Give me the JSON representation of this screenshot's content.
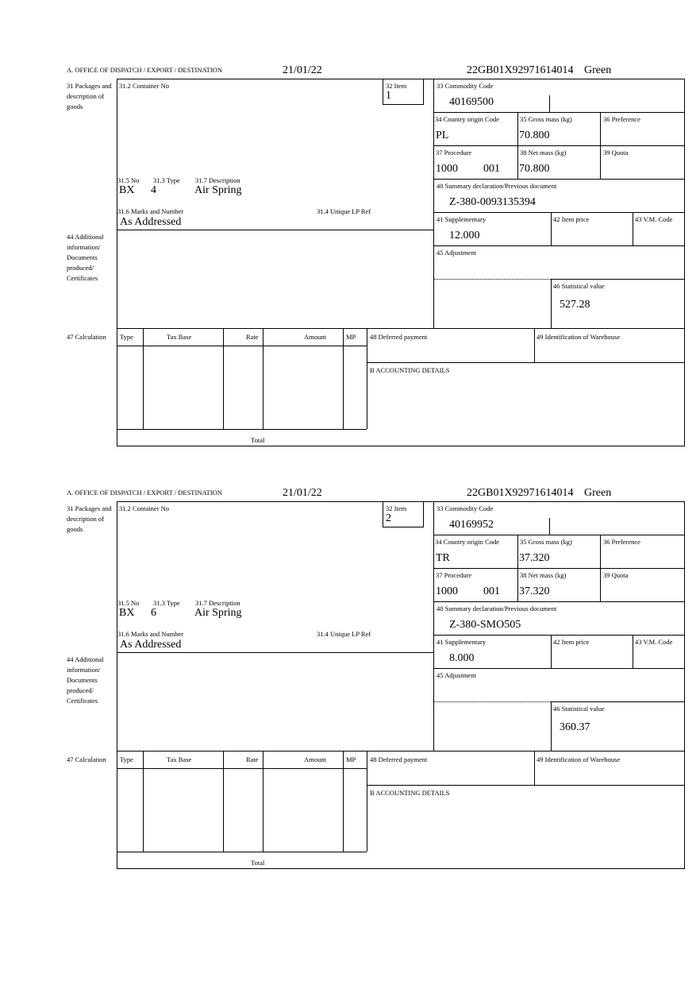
{
  "labels": {
    "office": "A.  OFFICE OF DISPATCH / EXPORT / DESTINATION",
    "packages": "31 Packages and description of goods",
    "container": "31.2 Container No",
    "item": "32 Item",
    "no": "31.5 No",
    "type": "31.3 Type",
    "description": "31.7 Description",
    "marks": "31.6 Marks and Number",
    "unique_ref": "31.4 Unique LP Ref",
    "commodity": "33 Commodity Code",
    "country": "34 Country origin Code",
    "gross": "35 Gross mass (kg)",
    "preference": "36 Preference",
    "procedure": "37 Procedure",
    "net": "38 Net mass (kg)",
    "quota": "39 Quota",
    "summary": "40 Summary declaration/Previous document",
    "supplementary": "41 Supplementary",
    "item_price": "42 Item price",
    "vm_code": "43 V.M. Code",
    "additional": "44 Additional information/ Documents produced/ Certificates",
    "adjustment": "45 Adjustment",
    "statistical": "46 Statistical value",
    "calculation": "47 Calculation",
    "calc_type": "Type",
    "calc_tax_base": "Tax Base",
    "calc_rate": "Rate",
    "calc_amount": "Amount",
    "calc_mp": "MP",
    "total": "Total",
    "deferred": "48 Deferred payment",
    "warehouse": "49 Identification of Warehouse",
    "accounting": "B ACCOUNTING DETAILS"
  },
  "items": [
    {
      "date": "21/01/22",
      "mrn": "22GB01X92971614014",
      "route": "Green",
      "item_no": "1",
      "no": "BX",
      "type": "4",
      "description": "Air Spring",
      "marks": "As Addressed",
      "commodity": "40169500",
      "country": "PL",
      "gross": "70.800",
      "procedure": "1000",
      "procedure_add": "001",
      "net": "70.800",
      "summary": "Z-380-0093135394",
      "supplementary": "12.000",
      "statistical": "527.28"
    },
    {
      "date": "21/01/22",
      "mrn": "22GB01X92971614014",
      "route": "Green",
      "item_no": "2",
      "no": "BX",
      "type": "6",
      "description": "Air Spring",
      "marks": "As Addressed",
      "commodity": "40169952",
      "country": "TR",
      "gross": "37.320",
      "procedure": "1000",
      "procedure_add": "001",
      "net": "37.320",
      "summary": "Z-380-SMO505",
      "supplementary": "8.000",
      "statistical": "360.37"
    }
  ]
}
